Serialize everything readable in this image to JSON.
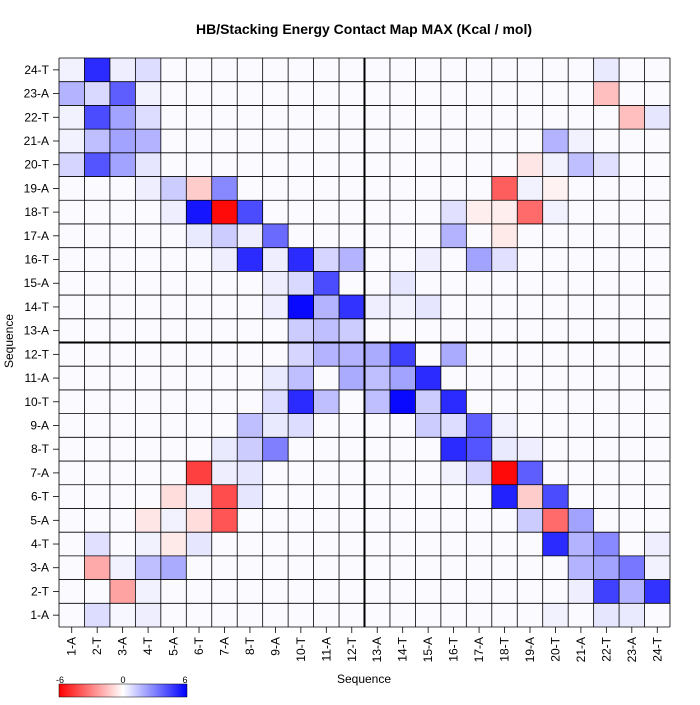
{
  "chart_data": {
    "type": "heatmap",
    "title": "HB/Stacking Energy Contact Map MAX (Kcal / mol)",
    "xlabel": "Sequence",
    "ylabel": "Sequence",
    "labels": [
      "1-A",
      "2-T",
      "3-A",
      "4-T",
      "5-A",
      "6-T",
      "7-A",
      "8-T",
      "9-A",
      "10-T",
      "11-A",
      "12-T",
      "13-A",
      "14-T",
      "15-A",
      "16-T",
      "17-A",
      "18-T",
      "19-A",
      "20-T",
      "21-A",
      "22-T",
      "23-A",
      "24-T"
    ],
    "color_scale": {
      "min": -6,
      "mid": 0,
      "max": 6,
      "low_color": "#ff0000",
      "mid_color": "#ffffff",
      "high_color": "#0000ff"
    },
    "legend": {
      "min_label": "-6",
      "mid_label": "0",
      "max_label": "6"
    },
    "cells": [
      [
        1,
        2,
        0.8
      ],
      [
        1,
        3,
        0.2
      ],
      [
        1,
        4,
        0.4
      ],
      [
        2,
        3,
        -2.2
      ],
      [
        2,
        4,
        0.3
      ],
      [
        3,
        2,
        -2.0
      ],
      [
        3,
        4,
        1.5
      ],
      [
        3,
        5,
        2.0
      ],
      [
        4,
        2,
        0.7
      ],
      [
        4,
        5,
        -0.5
      ],
      [
        4,
        6,
        0.6
      ],
      [
        5,
        4,
        -0.6
      ],
      [
        5,
        6,
        -0.8
      ],
      [
        5,
        7,
        -4.0
      ],
      [
        6,
        5,
        -0.8
      ],
      [
        6,
        7,
        -4.2
      ],
      [
        6,
        8,
        0.6
      ],
      [
        7,
        6,
        -4.5
      ],
      [
        7,
        7,
        0.4
      ],
      [
        7,
        8,
        0.6
      ],
      [
        8,
        7,
        0.5
      ],
      [
        8,
        8,
        1.2
      ],
      [
        8,
        9,
        3.0
      ],
      [
        9,
        8,
        1.5
      ],
      [
        9,
        10,
        0.8
      ],
      [
        9,
        9,
        0.5
      ],
      [
        10,
        9,
        0.8
      ],
      [
        10,
        10,
        5.0
      ],
      [
        10,
        11,
        1.5
      ],
      [
        11,
        10,
        1.5
      ],
      [
        11,
        12,
        2.0
      ],
      [
        12,
        11,
        1.8
      ],
      [
        12,
        12,
        1.8
      ],
      [
        1,
        20,
        0.3
      ],
      [
        1,
        22,
        0.6
      ],
      [
        1,
        23,
        0.5
      ],
      [
        2,
        21,
        0.4
      ],
      [
        2,
        22,
        4.5
      ],
      [
        2,
        23,
        1.8
      ],
      [
        2,
        24,
        4.8
      ],
      [
        3,
        21,
        1.8
      ],
      [
        3,
        22,
        2.2
      ],
      [
        3,
        23,
        3.2
      ],
      [
        3,
        24,
        0.3
      ],
      [
        4,
        20,
        5.0
      ],
      [
        4,
        21,
        1.8
      ],
      [
        4,
        22,
        2.8
      ],
      [
        4,
        24,
        0.4
      ],
      [
        5,
        19,
        1.2
      ],
      [
        5,
        20,
        -3.5
      ],
      [
        5,
        21,
        2.2
      ],
      [
        6,
        18,
        5.2
      ],
      [
        6,
        19,
        -1.2
      ],
      [
        6,
        20,
        4.2
      ],
      [
        7,
        17,
        1.0
      ],
      [
        7,
        18,
        -5.8
      ],
      [
        7,
        19,
        3.8
      ],
      [
        8,
        16,
        5.0
      ],
      [
        8,
        17,
        4.0
      ],
      [
        8,
        18,
        0.5
      ],
      [
        9,
        15,
        1.2
      ],
      [
        9,
        16,
        0.8
      ],
      [
        9,
        17,
        3.8
      ],
      [
        10,
        13,
        1.5
      ],
      [
        10,
        14,
        5.8
      ],
      [
        10,
        15,
        1.2
      ],
      [
        10,
        16,
        5.0
      ],
      [
        11,
        13,
        1.5
      ],
      [
        11,
        14,
        2.2
      ],
      [
        11,
        15,
        5.0
      ],
      [
        12,
        13,
        2.0
      ],
      [
        12,
        14,
        4.5
      ],
      [
        12,
        16,
        2.0
      ],
      [
        20,
        1,
        1.0
      ],
      [
        20,
        2,
        4.0
      ],
      [
        20,
        3,
        2.2
      ],
      [
        20,
        4,
        0.6
      ],
      [
        21,
        1,
        0.3
      ],
      [
        21,
        2,
        1.5
      ],
      [
        21,
        3,
        2.2
      ],
      [
        21,
        4,
        1.8
      ],
      [
        22,
        1,
        0.3
      ],
      [
        22,
        2,
        4.2
      ],
      [
        22,
        3,
        2.2
      ],
      [
        22,
        4,
        0.8
      ],
      [
        23,
        1,
        1.8
      ],
      [
        23,
        2,
        0.9
      ],
      [
        23,
        3,
        3.8
      ],
      [
        23,
        4,
        0.3
      ],
      [
        24,
        1,
        0.3
      ],
      [
        24,
        2,
        5.0
      ],
      [
        24,
        3,
        0.4
      ],
      [
        24,
        4,
        0.8
      ],
      [
        19,
        4,
        0.4
      ],
      [
        19,
        5,
        1.2
      ],
      [
        19,
        6,
        -1.2
      ],
      [
        19,
        7,
        2.8
      ],
      [
        18,
        5,
        0.4
      ],
      [
        18,
        6,
        5.5
      ],
      [
        18,
        7,
        -5.8
      ],
      [
        18,
        8,
        4.2
      ],
      [
        17,
        6,
        0.5
      ],
      [
        17,
        7,
        1.2
      ],
      [
        17,
        8,
        0.4
      ],
      [
        17,
        9,
        3.5
      ],
      [
        16,
        7,
        0.4
      ],
      [
        16,
        8,
        5.0
      ],
      [
        16,
        9,
        0.4
      ],
      [
        16,
        10,
        5.0
      ],
      [
        16,
        11,
        1.0
      ],
      [
        16,
        12,
        1.8
      ],
      [
        15,
        10,
        0.9
      ],
      [
        15,
        11,
        4.2
      ],
      [
        14,
        10,
        5.8
      ],
      [
        14,
        11,
        1.8
      ],
      [
        14,
        12,
        4.8
      ],
      [
        13,
        10,
        1.2
      ],
      [
        13,
        11,
        1.5
      ],
      [
        13,
        12,
        1.2
      ],
      [
        12,
        10,
        1.0
      ],
      [
        11,
        9,
        0.5
      ],
      [
        15,
        9,
        0.4
      ],
      [
        14,
        9,
        0.4
      ],
      [
        24,
        22,
        0.5
      ],
      [
        23,
        22,
        -1.5
      ],
      [
        22,
        23,
        -1.5
      ],
      [
        22,
        24,
        0.6
      ],
      [
        20,
        21,
        1.5
      ],
      [
        20,
        19,
        -0.6
      ],
      [
        20,
        22,
        0.7
      ],
      [
        20,
        20,
        0.3
      ],
      [
        21,
        20,
        1.8
      ],
      [
        21,
        21,
        0.3
      ],
      [
        19,
        18,
        -3.8
      ],
      [
        19,
        19,
        0.3
      ],
      [
        19,
        20,
        -0.3
      ],
      [
        18,
        18,
        -0.4
      ],
      [
        18,
        19,
        -3.5
      ],
      [
        18,
        20,
        0.3
      ],
      [
        18,
        16,
        0.7
      ],
      [
        18,
        17,
        -0.4
      ],
      [
        17,
        16,
        1.8
      ],
      [
        17,
        18,
        -0.5
      ],
      [
        16,
        17,
        2.2
      ],
      [
        16,
        18,
        0.7
      ],
      [
        16,
        15,
        0.4
      ],
      [
        14,
        14,
        0.3
      ],
      [
        14,
        15,
        0.6
      ],
      [
        15,
        14,
        0.6
      ],
      [
        14,
        13,
        0.4
      ],
      [
        4,
        4,
        0.3
      ],
      [
        5,
        5,
        0.3
      ],
      [
        6,
        6,
        0.3
      ],
      [
        3,
        3,
        0.3
      ],
      [
        8,
        19,
        0.4
      ],
      [
        9,
        18,
        0.3
      ],
      [
        7,
        16,
        0.3
      ]
    ]
  }
}
